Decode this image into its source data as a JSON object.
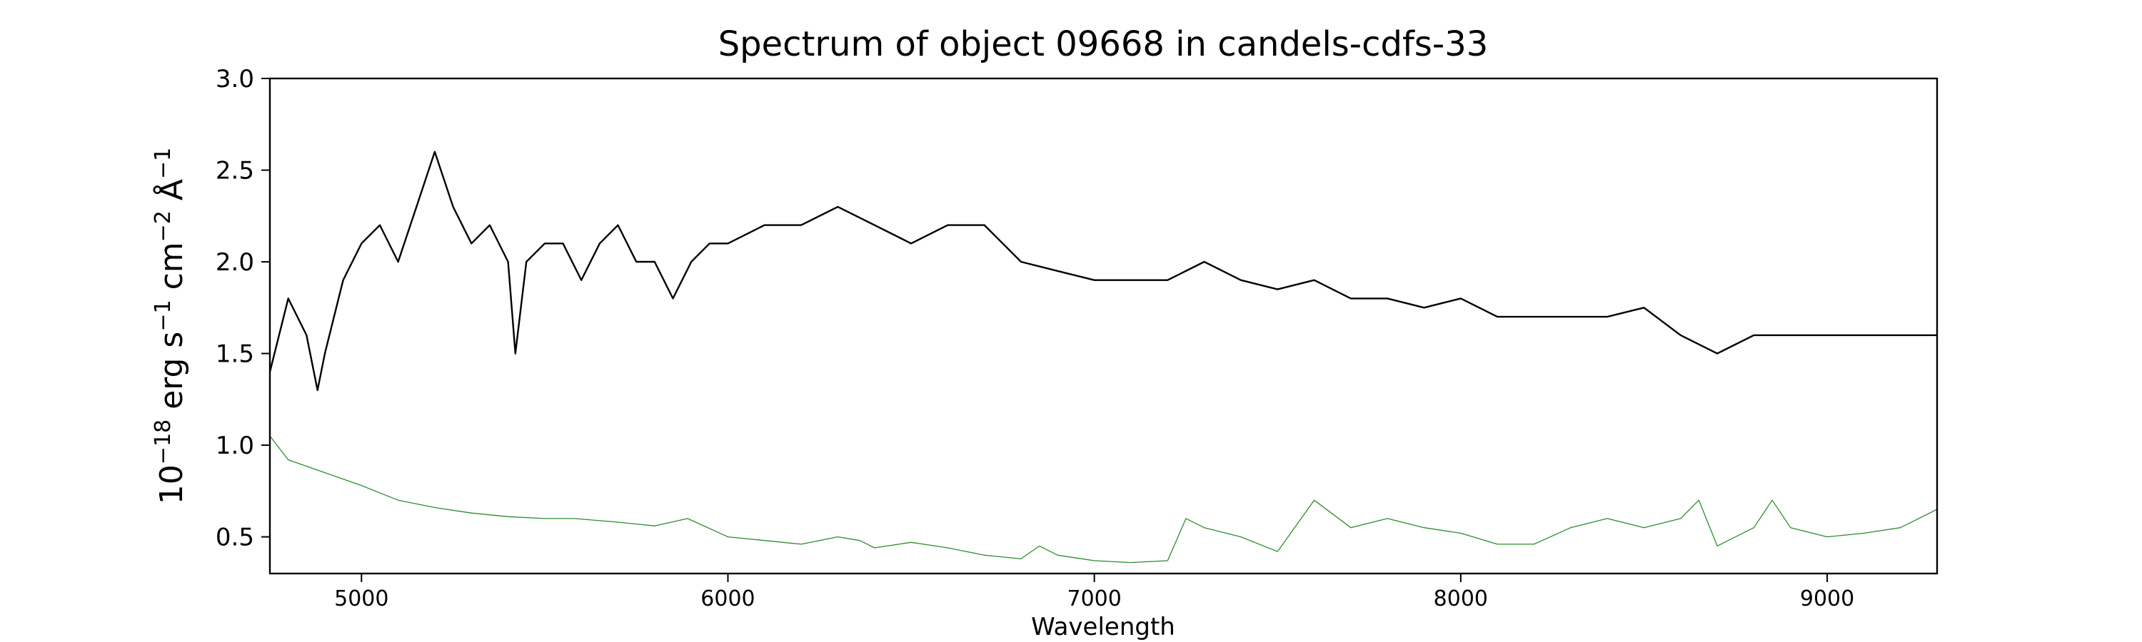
{
  "chart_data": {
    "type": "line",
    "title": "Spectrum of object 09668 in candels-cdfs-33",
    "xlabel": "Wavelength",
    "ylabel_base": "10",
    "ylabel_exp": "−18",
    "ylabel_parts": [
      {
        "t": " erg s"
      },
      {
        "t": "−1",
        "sup": true
      },
      {
        "t": " cm"
      },
      {
        "t": "−2",
        "sup": true
      },
      {
        "t": " Å"
      },
      {
        "t": "−1",
        "sup": true
      }
    ],
    "xlim": [
      4750,
      9300
    ],
    "ylim": [
      0.3,
      3.0
    ],
    "xticks": [
      5000,
      6000,
      7000,
      8000,
      9000
    ],
    "yticks": [
      0.5,
      1.0,
      1.5,
      2.0,
      2.5,
      3.0
    ],
    "ytick_labels": [
      "0.5",
      "1.0",
      "1.5",
      "2.0",
      "2.5",
      "3.0"
    ],
    "grid": false,
    "series": [
      {
        "color": "#000000",
        "linewidth": 2.4,
        "x": [
          4750,
          4800,
          4850,
          4880,
          4900,
          4950,
          5000,
          5050,
          5100,
          5150,
          5200,
          5250,
          5300,
          5350,
          5400,
          5420,
          5450,
          5500,
          5550,
          5600,
          5650,
          5700,
          5750,
          5800,
          5850,
          5900,
          5950,
          6000,
          6100,
          6200,
          6300,
          6400,
          6500,
          6600,
          6700,
          6800,
          6900,
          7000,
          7100,
          7200,
          7300,
          7400,
          7500,
          7600,
          7700,
          7800,
          7900,
          8000,
          8100,
          8200,
          8300,
          8400,
          8500,
          8600,
          8700,
          8800,
          8900,
          9000,
          9100,
          9200,
          9300
        ],
        "y": [
          1.4,
          1.8,
          1.6,
          1.3,
          1.5,
          1.9,
          2.1,
          2.2,
          2.0,
          2.3,
          2.6,
          2.3,
          2.1,
          2.2,
          2.0,
          1.5,
          2.0,
          2.1,
          2.1,
          1.9,
          2.1,
          2.2,
          2.0,
          2.0,
          1.8,
          2.0,
          2.1,
          2.1,
          2.2,
          2.2,
          2.3,
          2.2,
          2.1,
          2.2,
          2.2,
          2.0,
          1.95,
          1.9,
          1.9,
          1.9,
          2.0,
          1.9,
          1.85,
          1.9,
          1.8,
          1.8,
          1.75,
          1.8,
          1.7,
          1.7,
          1.7,
          1.7,
          1.75,
          1.6,
          1.5,
          1.6,
          1.6,
          1.6,
          1.6,
          1.6,
          1.6
        ]
      },
      {
        "color": "#2e8b2e",
        "linewidth": 1.3,
        "x": [
          4750,
          4800,
          4900,
          5000,
          5100,
          5200,
          5300,
          5400,
          5500,
          5580,
          5700,
          5800,
          5890,
          6000,
          6100,
          6200,
          6300,
          6360,
          6400,
          6500,
          6600,
          6700,
          6800,
          6850,
          6900,
          7000,
          7100,
          7200,
          7250,
          7300,
          7400,
          7500,
          7600,
          7700,
          7800,
          7900,
          8000,
          8100,
          8200,
          8300,
          8400,
          8500,
          8600,
          8650,
          8700,
          8800,
          8850,
          8900,
          9000,
          9100,
          9200,
          9300
        ],
        "y": [
          1.05,
          0.92,
          0.85,
          0.78,
          0.7,
          0.66,
          0.63,
          0.61,
          0.6,
          0.6,
          0.58,
          0.56,
          0.6,
          0.5,
          0.48,
          0.46,
          0.5,
          0.48,
          0.44,
          0.47,
          0.44,
          0.4,
          0.38,
          0.45,
          0.4,
          0.37,
          0.36,
          0.37,
          0.6,
          0.55,
          0.5,
          0.42,
          0.7,
          0.55,
          0.6,
          0.55,
          0.52,
          0.46,
          0.46,
          0.55,
          0.6,
          0.55,
          0.6,
          0.7,
          0.45,
          0.55,
          0.7,
          0.55,
          0.5,
          0.52,
          0.55,
          0.65
        ]
      }
    ]
  }
}
